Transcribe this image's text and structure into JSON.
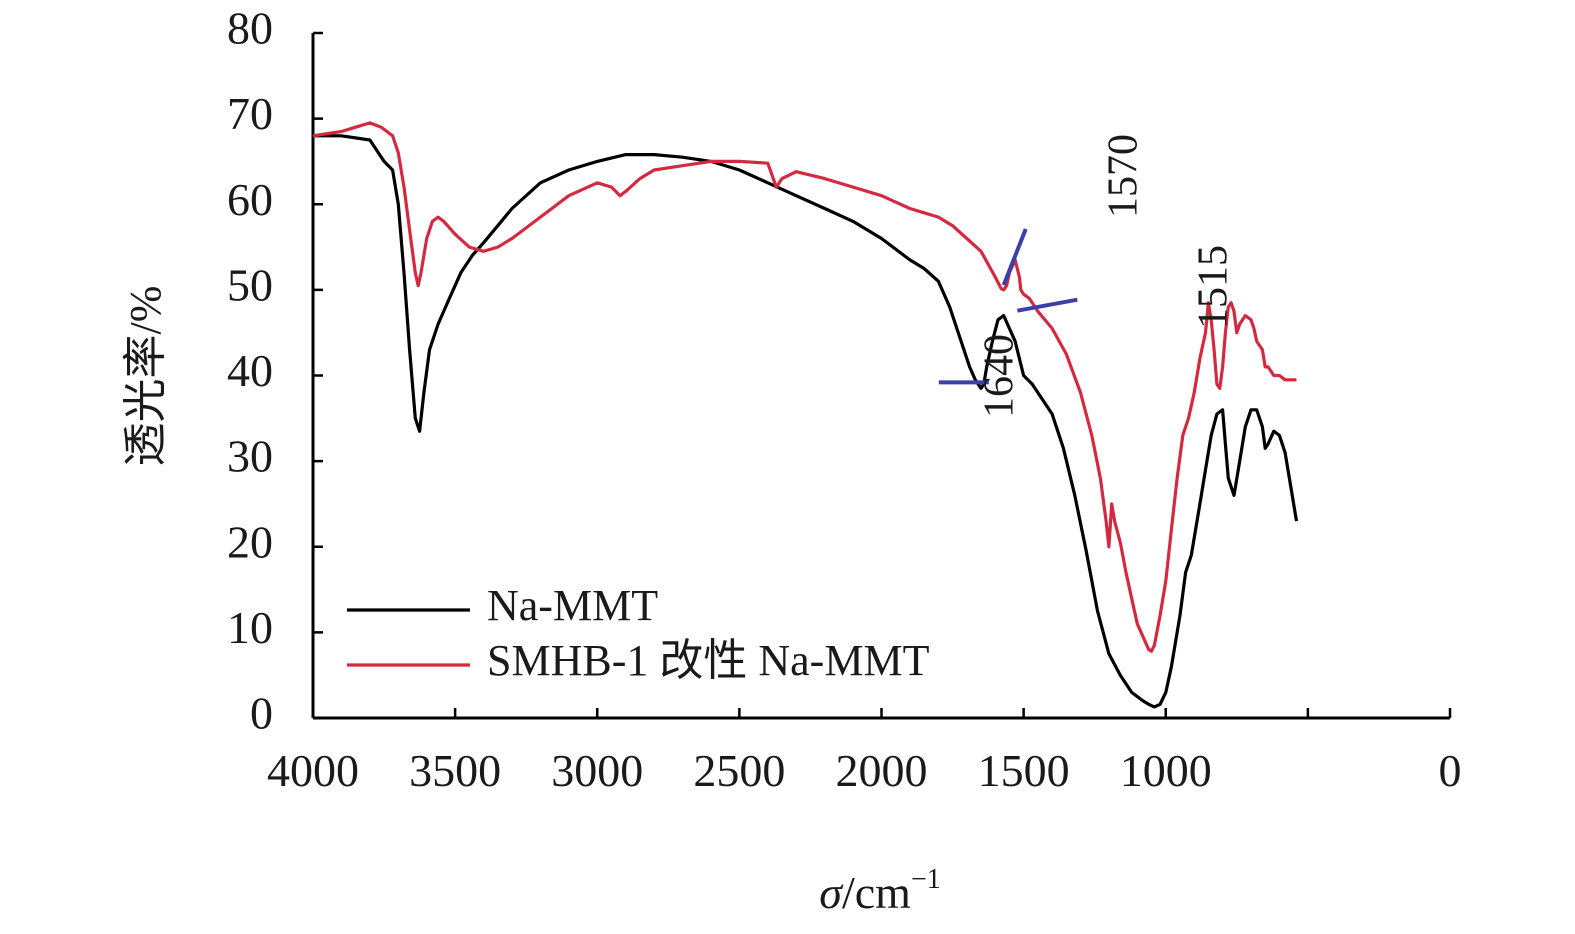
{
  "chart_data": {
    "type": "line",
    "title": "",
    "xlabel": {
      "symbol": "σ",
      "unit": "/cm",
      "sup": "−1"
    },
    "ylabel": "透光率/%",
    "xlim": [
      4000,
      0
    ],
    "ylim": [
      0,
      80
    ],
    "x_ticks": [
      "4000",
      "3500",
      "3000",
      "2500",
      "2000",
      "1500",
      "1000",
      "0"
    ],
    "y_ticks": [
      "0",
      "10",
      "20",
      "30",
      "40",
      "50",
      "60",
      "70",
      "80"
    ],
    "legend_position": "bottom-left",
    "grid": false,
    "series": [
      {
        "name": "Na-MMT",
        "color": "#000000",
        "x": [
          4000,
          3900,
          3800,
          3750,
          3720,
          3700,
          3680,
          3660,
          3640,
          3625,
          3610,
          3590,
          3560,
          3520,
          3480,
          3440,
          3400,
          3350,
          3300,
          3200,
          3100,
          3000,
          2900,
          2800,
          2700,
          2600,
          2500,
          2400,
          2300,
          2200,
          2100,
          2000,
          1900,
          1850,
          1800,
          1760,
          1720,
          1690,
          1670,
          1650,
          1640,
          1630,
          1610,
          1590,
          1570,
          1550,
          1530,
          1500,
          1470,
          1440,
          1400,
          1360,
          1320,
          1280,
          1240,
          1200,
          1160,
          1120,
          1080,
          1060,
          1040,
          1020,
          1000,
          980,
          950,
          930,
          910,
          880,
          860,
          840,
          820,
          800,
          790,
          780,
          760,
          740,
          720,
          700,
          680,
          660,
          650,
          640,
          620,
          600,
          580,
          560,
          540
        ],
        "y": [
          68,
          68,
          67.5,
          65,
          64,
          60,
          52,
          43,
          35,
          33.5,
          38,
          43,
          46,
          49,
          52,
          54,
          55.5,
          57.5,
          59.5,
          62.5,
          64,
          65,
          65.8,
          65.8,
          65.5,
          65,
          64,
          62.5,
          61,
          59.5,
          58,
          56,
          53.5,
          52.5,
          51,
          48,
          44,
          41,
          39.5,
          38.5,
          39,
          41,
          44,
          46.5,
          47,
          45.5,
          44,
          40,
          39,
          37.5,
          35.5,
          31.5,
          26,
          19.5,
          12.5,
          7.5,
          5,
          3,
          2,
          1.6,
          1.3,
          1.6,
          3,
          6,
          12,
          17,
          19,
          25,
          29,
          33,
          35.5,
          36,
          32,
          28,
          26,
          30,
          34,
          36,
          36,
          34,
          31.5,
          32,
          33.5,
          33,
          31,
          27,
          23
        ]
      },
      {
        "name": "SMHB-1 改性 Na-MMT",
        "color": "#d42a40",
        "x": [
          4000,
          3900,
          3850,
          3800,
          3760,
          3740,
          3720,
          3700,
          3680,
          3660,
          3640,
          3630,
          3620,
          3600,
          3580,
          3560,
          3540,
          3500,
          3450,
          3400,
          3350,
          3300,
          3200,
          3100,
          3000,
          2950,
          2920,
          2900,
          2850,
          2800,
          2700,
          2600,
          2500,
          2400,
          2370,
          2350,
          2300,
          2200,
          2100,
          2000,
          1900,
          1850,
          1800,
          1750,
          1700,
          1650,
          1600,
          1580,
          1570,
          1560,
          1550,
          1530,
          1515,
          1510,
          1500,
          1480,
          1450,
          1400,
          1350,
          1300,
          1260,
          1230,
          1210,
          1200,
          1190,
          1180,
          1160,
          1140,
          1120,
          1100,
          1080,
          1060,
          1050,
          1040,
          1020,
          1000,
          980,
          960,
          940,
          920,
          900,
          880,
          860,
          850,
          840,
          830,
          820,
          810,
          800,
          790,
          780,
          770,
          760,
          750,
          740,
          720,
          700,
          690,
          680,
          660,
          650,
          640,
          620,
          600,
          580,
          560,
          540
        ],
        "y": [
          68,
          68.5,
          69,
          69.5,
          69,
          68.5,
          68,
          66,
          62,
          57,
          52,
          50.5,
          52,
          56,
          58,
          58.5,
          58,
          56.5,
          55,
          54.5,
          55,
          56,
          58.5,
          61,
          62.5,
          62,
          61,
          61.5,
          63,
          64,
          64.5,
          65,
          65,
          64.8,
          62,
          63,
          63.8,
          63,
          62,
          61,
          59.5,
          59,
          58.5,
          57.5,
          56,
          54.5,
          51.5,
          50.2,
          50,
          50.5,
          52,
          53.5,
          51.5,
          50,
          49.5,
          49,
          47.5,
          45.5,
          42.5,
          38,
          33,
          28,
          23,
          20,
          25,
          23,
          20.5,
          17,
          14,
          11,
          9.5,
          8,
          7.8,
          8.5,
          12,
          16,
          22,
          28,
          33,
          35,
          38,
          42,
          45,
          48.5,
          46.5,
          43,
          39,
          38.5,
          41,
          45,
          48,
          48.5,
          47.5,
          45,
          46,
          47,
          46.5,
          45.5,
          44,
          43,
          41,
          41,
          40,
          40,
          39.5,
          39.5,
          39.5
        ]
      }
    ],
    "annotations": [
      {
        "text": "1640",
        "x": 1640,
        "y": 39.2
      },
      {
        "text": "1570",
        "x": 1570,
        "y": 51.5
      },
      {
        "text": "1515",
        "x": 1515,
        "y": 48.5
      }
    ],
    "annotation_color": "#3b3fa8"
  }
}
